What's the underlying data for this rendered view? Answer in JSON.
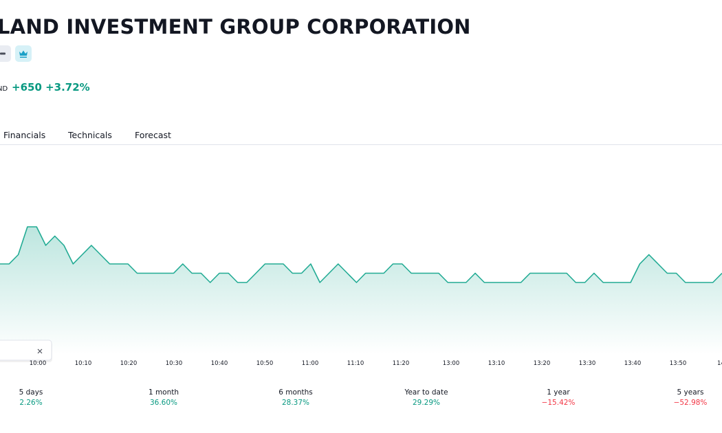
{
  "header": {
    "title": "LAND INVESTMENT GROUP CORPORATION",
    "currency": "ND",
    "change": "+650 +3.72%"
  },
  "tabs": [
    "Financials",
    "Technicals",
    "Forecast"
  ],
  "chart_data": {
    "type": "area",
    "color": "#22ab94",
    "ylim": [
      17800,
      18300
    ],
    "xtick_labels": [
      "10:00",
      "10:10",
      "10:20",
      "10:30",
      "10:40",
      "10:50",
      "11:00",
      "11:10",
      "11:20",
      "13:00",
      "13:10",
      "13:20",
      "13:30",
      "13:40",
      "13:50",
      "14"
    ],
    "values": [
      18000,
      18000,
      18050,
      18200,
      18200,
      18100,
      18150,
      18100,
      18000,
      18050,
      18100,
      18050,
      18000,
      18000,
      18000,
      17950,
      17950,
      17950,
      17950,
      17950,
      18000,
      17950,
      17950,
      17900,
      17950,
      17950,
      17900,
      17900,
      17950,
      18000,
      18000,
      18000,
      17950,
      17950,
      18000,
      17900,
      17950,
      18000,
      17950,
      17900,
      17950,
      17950,
      17950,
      18000,
      18000,
      17950,
      17950,
      17950,
      17950,
      17900,
      17900,
      17900,
      17950,
      17900,
      17900,
      17900,
      17900,
      17900,
      17950,
      17950,
      17950,
      17950,
      17950,
      17900,
      17900,
      17950,
      17900,
      17900,
      17900,
      17900,
      18000,
      18050,
      18000,
      17950,
      17950,
      17900,
      17900,
      17900,
      17900,
      17950
    ]
  },
  "performance": [
    {
      "period": "5 days",
      "value": "2.26%",
      "direction": "up"
    },
    {
      "period": "1 month",
      "value": "36.60%",
      "direction": "up"
    },
    {
      "period": "6 months",
      "value": "28.37%",
      "direction": "up"
    },
    {
      "period": "Year to date",
      "value": "29.29%",
      "direction": "up"
    },
    {
      "period": "1 year",
      "value": "−15.42%",
      "direction": "down"
    },
    {
      "period": "5 years",
      "value": "−52.98%",
      "direction": "down"
    }
  ]
}
